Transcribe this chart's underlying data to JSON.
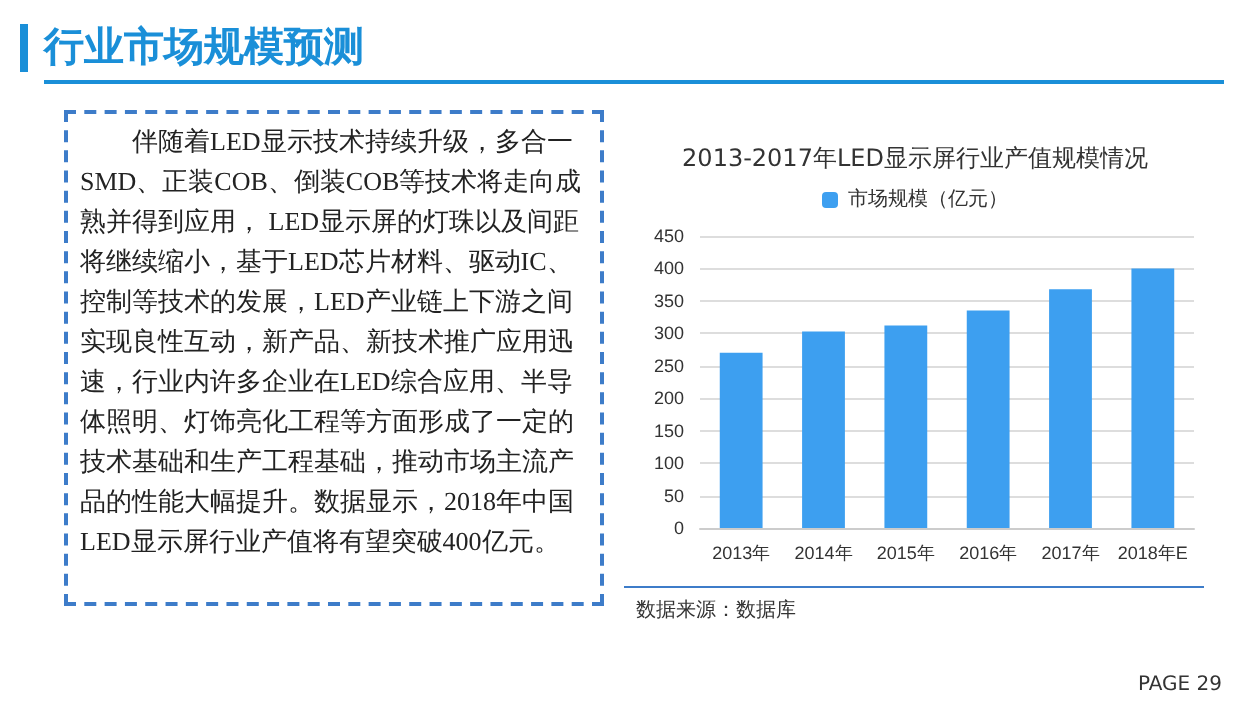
{
  "chart_data": {
    "type": "bar",
    "title": "行业市场规模预测",
    "subtitle": "2013-2017年LED显示屏行业产值规模情况",
    "annotations": [
      "伴随着LED显示技术持续升级，多合一SMD、正装COB、倒装COB等技术将走向成熟并得到应用， LED显示屏的灯珠以及间距将继续缩小，基于LED芯片材料、驱动IC、控制等技术的发展，LED产业链上下游之间实现良性互动，新产品、新技术推广应用迅速，行业内许多企业在LED综合应用、半导体照明、灯饰亮化工程等方面形成了一定的技术基础和生产工程基础，推动市场主流产品的性能大幅提升。数据显示，2018年中国LED显示屏行业产值将有望突破400亿元。",
      "数据来源：数据库",
      "PAGE 29"
    ],
    "categories": [
      "2013年",
      "2014年",
      "2015年",
      "2016年",
      "2017年",
      "2018年E"
    ],
    "series": [
      {
        "name": "市场规模（亿元）",
        "color": "#3d9ff0",
        "values": [
          270,
          303,
          312,
          335,
          368,
          400
        ]
      }
    ],
    "ylim": [
      0,
      450
    ],
    "yticks": [
      0,
      50,
      100,
      150,
      200,
      250,
      300,
      350,
      400,
      450
    ],
    "grid": "y",
    "legend": "top"
  }
}
